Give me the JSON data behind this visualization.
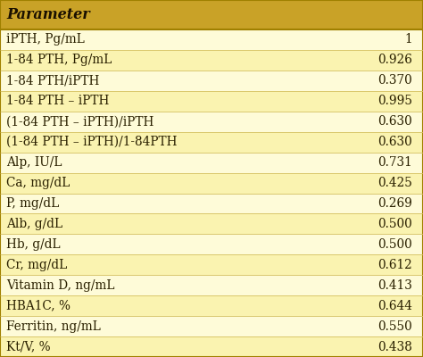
{
  "header": "Parameter",
  "header_bg": "#C9A227",
  "header_text_color": "#1a1000",
  "rows": [
    {
      "param": "iPTH, Pg/mL",
      "value": "1",
      "bg": "#FEFBD8"
    },
    {
      "param": "1-84 PTH, Pg/mL",
      "value": "0.926",
      "bg": "#FAF3B0"
    },
    {
      "param": "1-84 PTH/iPTH",
      "value": "0.370",
      "bg": "#FEFBD8"
    },
    {
      "param": "1-84 PTH – iPTH",
      "value": "0.995",
      "bg": "#FAF3B0"
    },
    {
      "param": "(1-84 PTH – iPTH)/iPTH",
      "value": "0.630",
      "bg": "#FEFBD8"
    },
    {
      "param": "(1-84 PTH – iPTH)/1-84PTH",
      "value": "0.630",
      "bg": "#FAF3B0"
    },
    {
      "param": "Alp, IU/L",
      "value": "0.731",
      "bg": "#FEFBD8"
    },
    {
      "param": "Ca, mg/dL",
      "value": "0.425",
      "bg": "#FAF3B0"
    },
    {
      "param": "P, mg/dL",
      "value": "0.269",
      "bg": "#FEFBD8"
    },
    {
      "param": "Alb, g/dL",
      "value": "0.500",
      "bg": "#FAF3B0"
    },
    {
      "param": "Hb, g/dL",
      "value": "0.500",
      "bg": "#FEFBD8"
    },
    {
      "param": "Cr, mg/dL",
      "value": "0.612",
      "bg": "#FAF3B0"
    },
    {
      "param": "Vitamin D, ng/mL",
      "value": "0.413",
      "bg": "#FEFBD8"
    },
    {
      "param": "HBA1C, %",
      "value": "0.644",
      "bg": "#FAF3B0"
    },
    {
      "param": "Ferritin, ng/mL",
      "value": "0.550",
      "bg": "#FEFBD8"
    },
    {
      "param": "Kt/V, %",
      "value": "0.438",
      "bg": "#FAF3B0"
    }
  ],
  "border_color": "#A08000",
  "sep_color": "#D4C060",
  "text_color": "#2a2000",
  "font_size": 9.8,
  "header_font_size": 11.5,
  "fig_width": 4.74,
  "fig_height": 4.0,
  "dpi": 100
}
